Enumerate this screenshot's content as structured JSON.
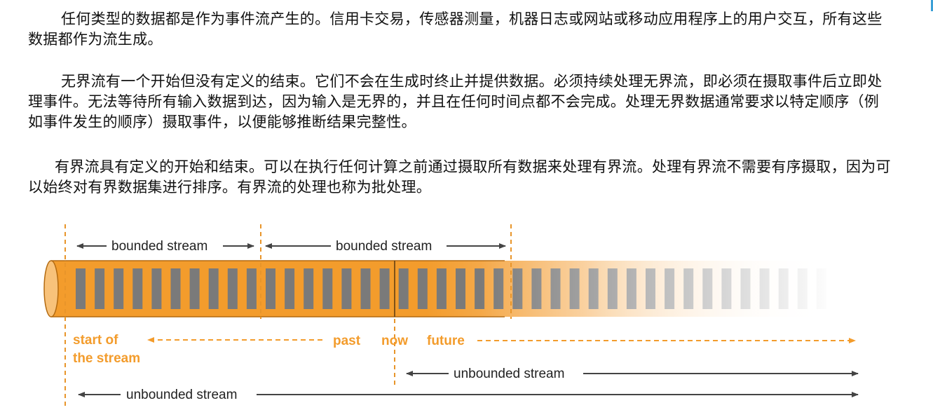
{
  "paragraphs": [
    "任何类型的数据都是作为事件流产生的。信用卡交易，传感器测量，机器日志或网站或移动应用程序上的用户交互，所有这些数据都作为流生成。",
    "无界流有一个开始但没有定义的结束。它们不会在生成时终止并提供数据。必须持续处理无界流，即必须在摄取事件后立即处理事件。无法等待所有输入数据到达，因为输入是无界的，并且在任何时间点都不会完成。处理无界数据通常要求以特定顺序（例如事件发生的顺序）摄取事件，以便能够推断结果完整性。",
    "有界流具有定义的开始和结束。可以在执行任何计算之前通过摄取所有数据来处理有界流。处理有界流不需要有序摄取，因为可以始终对有界数据集进行排序。有界流的处理也称为批处理。"
  ],
  "diagram": {
    "bounded_label_1": "bounded stream",
    "bounded_label_2": "bounded stream",
    "start_label_line1": "start of",
    "start_label_line2": "the stream",
    "past_label": "past",
    "now_label": "now",
    "future_label": "future",
    "unbounded_label_now": "unbounded stream",
    "unbounded_label_start": "unbounded stream",
    "colors": {
      "stream_orange": "#f39c2c",
      "stream_dark": "#b36a10",
      "slot_gray": "#7a7a7a",
      "marker_orange": "#e8952a",
      "arrow_gray": "#444444"
    }
  }
}
